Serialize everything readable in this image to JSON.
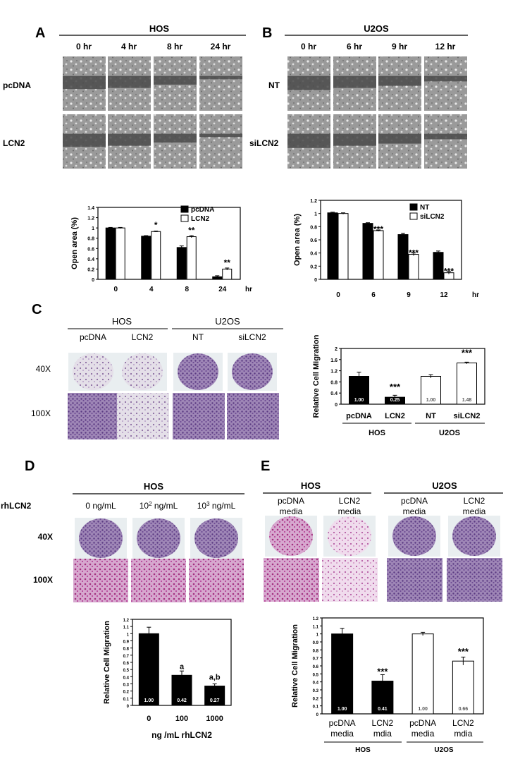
{
  "panels": {
    "A": {
      "letter": "A",
      "cell_line": "HOS",
      "timepoints": [
        "0 hr",
        "4 hr",
        "8 hr",
        "24 hr"
      ],
      "rows": [
        "pcDNA",
        "LCN2"
      ],
      "chart_data": {
        "type": "bar",
        "ylabel": "Open area (%)",
        "xunit": "hr",
        "categories": [
          "0",
          "4",
          "8",
          "24"
        ],
        "yticks": [
          "0",
          "0.2",
          "0.4",
          "0.6",
          "0.8",
          "1",
          "1.2",
          "1.4"
        ],
        "ylim": [
          0,
          1.4
        ],
        "legend": "top-right",
        "series": [
          {
            "name": "pcDNA",
            "fill": "#000000",
            "values": [
              1.0,
              0.84,
              0.62,
              0.05
            ],
            "errors": [
              0.01,
              0.01,
              0.03,
              0.02
            ]
          },
          {
            "name": "LCN2",
            "fill": "#ffffff",
            "values": [
              1.0,
              0.93,
              0.83,
              0.2
            ],
            "errors": [
              0.01,
              0.01,
              0.02,
              0.02
            ]
          }
        ],
        "significance": [
          {
            "category": 1,
            "series": 1,
            "label": "*"
          },
          {
            "category": 2,
            "series": 1,
            "label": "**"
          },
          {
            "category": 3,
            "series": 1,
            "label": "**"
          }
        ]
      }
    },
    "B": {
      "letter": "B",
      "cell_line": "U2OS",
      "timepoints": [
        "0 hr",
        "6 hr",
        "9 hr",
        "12 hr"
      ],
      "rows": [
        "NT",
        "siLCN2"
      ],
      "chart_data": {
        "type": "bar",
        "ylabel": "Open area (%)",
        "xunit": "hr",
        "categories": [
          "0",
          "6",
          "9",
          "12"
        ],
        "yticks": [
          "0",
          "0.2",
          "0.4",
          "0.6",
          "0.8",
          "1",
          "1.2"
        ],
        "ylim": [
          0,
          1.2
        ],
        "legend": "top-right",
        "series": [
          {
            "name": "NT",
            "fill": "#000000",
            "values": [
              1.01,
              0.85,
              0.68,
              0.41
            ],
            "errors": [
              0.01,
              0.01,
              0.02,
              0.02
            ]
          },
          {
            "name": "siLCN2",
            "fill": "#ffffff",
            "values": [
              1.0,
              0.74,
              0.38,
              0.1
            ],
            "errors": [
              0.01,
              0.01,
              0.02,
              0.02
            ]
          }
        ],
        "significance": [
          {
            "category": 1,
            "series": 1,
            "label": "***"
          },
          {
            "category": 2,
            "series": 1,
            "label": "***"
          },
          {
            "category": 3,
            "series": 1,
            "label": "***"
          }
        ]
      }
    },
    "C": {
      "letter": "C",
      "groups": [
        "HOS",
        "U2OS"
      ],
      "columns": [
        "pcDNA",
        "LCN2",
        "NT",
        "siLCN2"
      ],
      "magnifications": [
        "40X",
        "100X"
      ],
      "chart_data": {
        "type": "bar",
        "ylabel": "Relative Cell Migration",
        "categories": [
          "pcDNA",
          "LCN2",
          "NT",
          "siLCN2"
        ],
        "groups": [
          "HOS",
          "U2OS"
        ],
        "yticks": [
          "0",
          "0.4",
          "0.8",
          "1.2",
          "1.6",
          "2"
        ],
        "ylim": [
          0,
          2
        ],
        "values": [
          1.0,
          0.25,
          1.0,
          1.48
        ],
        "errors": [
          0.15,
          0.07,
          0.06,
          0.03
        ],
        "fills": [
          "#000000",
          "#000000",
          "#ffffff",
          "#ffffff"
        ],
        "value_labels": [
          "1.00",
          "0.25",
          "1.00",
          "1.48"
        ],
        "significance": [
          "",
          "***",
          "",
          "***"
        ]
      }
    },
    "D": {
      "letter": "D",
      "cell_line": "HOS",
      "row_label": "rhLCN2",
      "concentrations": [
        {
          "base": "0 ng/mL",
          "sup": ""
        },
        {
          "base": "10",
          "sup": "2",
          "tail": " ng/mL"
        },
        {
          "base": "10",
          "sup": "3",
          "tail": " ng/mL"
        }
      ],
      "magnifications": [
        "40X",
        "100X"
      ],
      "chart_data": {
        "type": "bar",
        "ylabel": "Relative Cell Migration",
        "xlabel": "ng /mL rhLCN2",
        "categories": [
          "0",
          "100",
          "1000"
        ],
        "yticks": [
          "0",
          "0.1",
          "0.2",
          "0.3",
          "0.4",
          "0.5",
          "0.6",
          "0.7",
          "0.8",
          "0.9",
          "1",
          "1.1",
          "1.2"
        ],
        "ylim": [
          0,
          1.2
        ],
        "values": [
          1.0,
          0.42,
          0.27
        ],
        "errors": [
          0.09,
          0.06,
          0.03
        ],
        "value_labels": [
          "1.00",
          "0.42",
          "0.27"
        ],
        "significance": [
          "",
          "a",
          "a,b"
        ]
      }
    },
    "E": {
      "letter": "E",
      "groups": [
        "HOS",
        "U2OS"
      ],
      "columns": [
        [
          "pcDNA",
          "media"
        ],
        [
          "LCN2",
          "media"
        ],
        [
          "pcDNA",
          "media"
        ],
        [
          "LCN2",
          "media"
        ]
      ],
      "chart_data": {
        "type": "bar",
        "ylabel": "Relative Cell Migration",
        "categories": [
          [
            "pcDNA",
            "media"
          ],
          [
            "LCN2",
            "mdia"
          ],
          [
            "pcDNA",
            "media"
          ],
          [
            "LCN2",
            "mdia"
          ]
        ],
        "groups": [
          "HOS",
          "U2OS"
        ],
        "yticks": [
          "0",
          "0.1",
          "0.2",
          "0.3",
          "0.4",
          "0.5",
          "0.6",
          "0.7",
          "0.8",
          "0.9",
          "1",
          "1.1",
          "1.2"
        ],
        "ylim": [
          0,
          1.2
        ],
        "values": [
          1.0,
          0.41,
          1.0,
          0.66
        ],
        "errors": [
          0.07,
          0.08,
          0.02,
          0.05
        ],
        "fills": [
          "#000000",
          "#000000",
          "#ffffff",
          "#ffffff"
        ],
        "value_labels": [
          "1.00",
          "0.41",
          "1.00",
          "0.66"
        ],
        "significance": [
          "",
          "***",
          "",
          "***"
        ]
      }
    }
  }
}
